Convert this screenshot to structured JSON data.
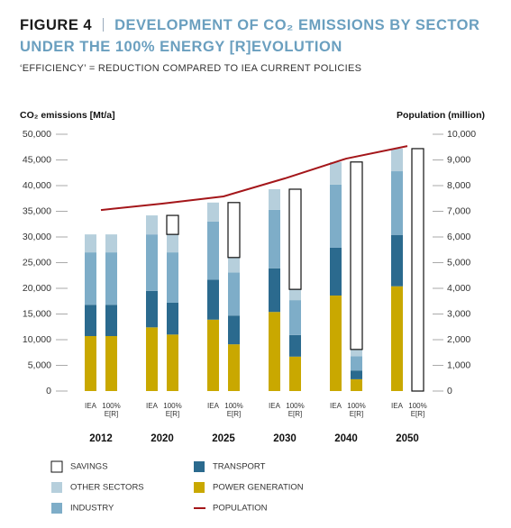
{
  "chart_data": {
    "type": "bar",
    "figure_label": "FIGURE 4",
    "title": "DEVELOPMENT OF CO₂ EMISSIONS BY SECTOR UNDER THE 100% ENERGY [R]EVOLUTION",
    "subtitle": "‘EFFICIENCY’ = REDUCTION COMPARED TO IEA CURRENT POLICIES",
    "ylabel": "CO₂ emissions [Mt/a]",
    "y2label": "Population (million)",
    "categories": [
      "2012",
      "2020",
      "2025",
      "2030",
      "2040",
      "2050"
    ],
    "series": [
      {
        "name": "POWER GENERATION",
        "color": "#c9a800"
      },
      {
        "name": "TRANSPORT",
        "color": "#2b6a8e"
      },
      {
        "name": "INDUSTRY",
        "color": "#7eadc8"
      },
      {
        "name": "OTHER SECTORS",
        "color": "#b6cfdc"
      },
      {
        "name": "SAVINGS",
        "color": "#ffffff"
      }
    ],
    "scenarios": [
      {
        "name": "IEA",
        "values": [
          [
            10700,
            12400,
            13900,
            15400,
            18600,
            20400
          ],
          [
            6100,
            7100,
            7800,
            8500,
            9300,
            10000
          ],
          [
            10200,
            11000,
            11300,
            11400,
            12300,
            12400
          ],
          [
            3500,
            3700,
            3700,
            4000,
            4400,
            4400
          ]
        ]
      },
      {
        "name": "100% E[R]",
        "values": [
          [
            10700,
            11000,
            9100,
            6700,
            2300,
            0
          ],
          [
            6100,
            6200,
            5600,
            4200,
            1700,
            0
          ],
          [
            10200,
            9800,
            8400,
            6800,
            2800,
            0
          ],
          [
            3500,
            3500,
            2900,
            2100,
            1300,
            0
          ],
          [
            0,
            3700,
            10700,
            19500,
            36500,
            47200
          ]
        ]
      }
    ],
    "line": {
      "name": "POPULATION",
      "color": "#a4161a",
      "axis": "y2",
      "values": [
        7050,
        7300,
        7580,
        8280,
        9050,
        9540
      ]
    },
    "ylim": [
      0,
      50000
    ],
    "yticks": [
      0,
      {
        "value": 5000,
        "label": "5,000"
      },
      {
        "value": 10000,
        "label": "10,000"
      },
      {
        "value": 15000,
        "label": "15,000"
      },
      {
        "value": 20000,
        "label": "20,000"
      },
      {
        "value": 25000,
        "label": "25,000"
      },
      {
        "value": 30000,
        "label": "30,000"
      },
      {
        "value": 35000,
        "label": "35,000"
      },
      {
        "value": 40000,
        "label": "40,000"
      },
      {
        "value": 45000,
        "label": "45,000"
      },
      {
        "value": 50000,
        "label": "50,000"
      }
    ],
    "y2lim": [
      0,
      10000
    ],
    "y2ticks": [
      0,
      {
        "value": 1000,
        "label": "1,000"
      },
      {
        "value": 2000,
        "label": "2,000"
      },
      {
        "value": 3000,
        "label": "3,000"
      },
      {
        "value": 4000,
        "label": "4,000"
      },
      {
        "value": 5000,
        "label": "5,000"
      },
      {
        "value": 6000,
        "label": "6,000"
      },
      {
        "value": 7000,
        "label": "7,000"
      },
      {
        "value": 8000,
        "label": "8,000"
      },
      {
        "value": 9000,
        "label": "9,000"
      },
      {
        "value": 10000,
        "label": "10,000"
      }
    ]
  }
}
